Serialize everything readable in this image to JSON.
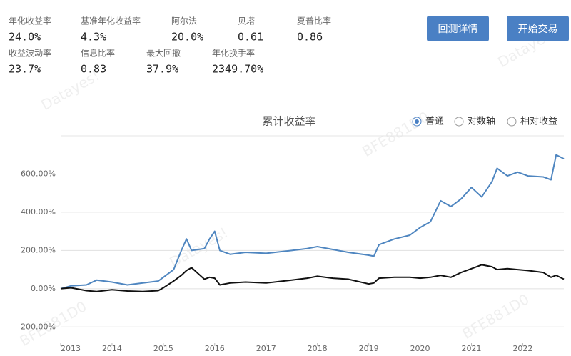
{
  "metrics": [
    {
      "label": "年化收益率",
      "value": "24.0%"
    },
    {
      "label": "基准年化收益率",
      "value": "4.3%"
    },
    {
      "label": "阿尔法",
      "value": "20.0%"
    },
    {
      "label": "贝塔",
      "value": "0.61"
    },
    {
      "label": "夏普比率",
      "value": "0.86"
    },
    {
      "label": "收益波动率",
      "value": "23.7%"
    },
    {
      "label": "信息比率",
      "value": "0.83"
    },
    {
      "label": "最大回撤",
      "value": "37.9%"
    },
    {
      "label": "年化换手率",
      "value": "2349.70%"
    }
  ],
  "buttons": [
    "回测详情",
    "开始交易"
  ],
  "view_options": [
    "普通",
    "对数轴",
    "相对收益"
  ],
  "selected_option": 0,
  "watermarks": [
    "Datayes!",
    "BFE881D0",
    "Datayes!",
    "BFE881D0",
    "BFE881D0",
    "Datayes!"
  ],
  "chart_data": {
    "type": "line",
    "title": "累计收益率",
    "x": [
      2013.0,
      2013.2,
      2013.5,
      2013.7,
      2014.0,
      2014.3,
      2014.6,
      2014.9,
      2015.0,
      2015.2,
      2015.35,
      2015.45,
      2015.55,
      2015.8,
      2015.9,
      2016.0,
      2016.1,
      2016.3,
      2016.6,
      2017.0,
      2017.5,
      2017.8,
      2018.0,
      2018.3,
      2018.6,
      2019.0,
      2019.1,
      2019.2,
      2019.5,
      2019.8,
      2020.0,
      2020.2,
      2020.4,
      2020.6,
      2020.8,
      2021.0,
      2021.2,
      2021.4,
      2021.5,
      2021.7,
      2021.9,
      2022.1,
      2022.4,
      2022.55,
      2022.65,
      2022.8
    ],
    "series": [
      {
        "color": "#4f86c0",
        "values": [
          0,
          15,
          20,
          45,
          35,
          20,
          30,
          40,
          60,
          100,
          200,
          260,
          200,
          210,
          260,
          300,
          200,
          180,
          190,
          185,
          200,
          210,
          220,
          205,
          190,
          175,
          170,
          230,
          260,
          280,
          320,
          350,
          460,
          430,
          470,
          530,
          480,
          560,
          630,
          590,
          610,
          590,
          585,
          570,
          700,
          680
        ]
      },
      {
        "color": "#111111",
        "values": [
          0,
          5,
          -10,
          -15,
          -5,
          -12,
          -15,
          -10,
          5,
          40,
          70,
          95,
          110,
          50,
          60,
          55,
          20,
          30,
          35,
          30,
          45,
          55,
          65,
          55,
          50,
          25,
          30,
          55,
          60,
          60,
          55,
          60,
          70,
          60,
          85,
          105,
          125,
          115,
          100,
          105,
          100,
          95,
          85,
          60,
          70,
          50
        ]
      }
    ],
    "xlim": [
      2013.0,
      2022.8
    ],
    "xticks": [
      2013,
      2014,
      2015,
      2016,
      2017,
      2018,
      2019,
      2020,
      2021,
      2022
    ],
    "ylim": [
      -300,
      800
    ],
    "yticks": [
      {
        "value": -200,
        "label": "-200.00%"
      },
      {
        "value": 0,
        "label": "0.00%"
      },
      {
        "value": 200,
        "label": "200.00%"
      },
      {
        "value": 400,
        "label": "400.00%"
      },
      {
        "value": 600,
        "label": "600.00%"
      }
    ],
    "grid": true
  }
}
